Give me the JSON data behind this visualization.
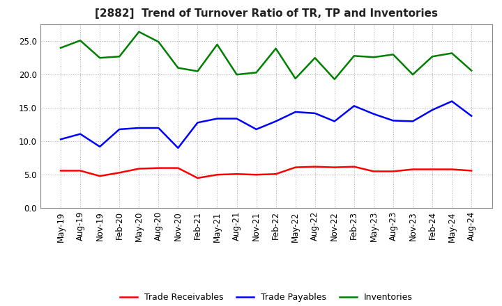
{
  "title": "[2882]  Trend of Turnover Ratio of TR, TP and Inventories",
  "x_labels": [
    "May-19",
    "Aug-19",
    "Nov-19",
    "Feb-20",
    "May-20",
    "Aug-20",
    "Nov-20",
    "Feb-21",
    "May-21",
    "Aug-21",
    "Nov-21",
    "Feb-22",
    "May-22",
    "Aug-22",
    "Nov-22",
    "Feb-23",
    "May-23",
    "Aug-23",
    "Nov-23",
    "Feb-24",
    "May-24",
    "Aug-24"
  ],
  "trade_receivables": [
    5.6,
    5.6,
    4.8,
    5.3,
    5.9,
    6.0,
    6.0,
    4.5,
    5.0,
    5.1,
    5.0,
    5.1,
    6.1,
    6.2,
    6.1,
    6.2,
    5.5,
    5.5,
    5.8,
    5.8,
    5.8,
    5.6
  ],
  "trade_payables": [
    10.3,
    11.1,
    9.2,
    11.8,
    12.0,
    12.0,
    9.0,
    12.8,
    13.4,
    13.4,
    11.8,
    13.0,
    14.4,
    14.2,
    13.0,
    15.3,
    14.1,
    13.1,
    13.0,
    14.7,
    16.0,
    13.8
  ],
  "inventories": [
    24.0,
    25.1,
    22.5,
    22.7,
    26.4,
    24.9,
    21.0,
    20.5,
    24.5,
    20.0,
    20.3,
    23.9,
    19.4,
    22.5,
    19.3,
    22.8,
    22.6,
    23.0,
    20.0,
    22.7,
    23.2,
    20.6
  ],
  "tr_color": "#ff0000",
  "tp_color": "#0000ff",
  "inv_color": "#008000",
  "ylim": [
    0,
    27.5
  ],
  "yticks": [
    0.0,
    5.0,
    10.0,
    15.0,
    20.0,
    25.0
  ],
  "grid_color": "#aaaaaa",
  "legend_labels": [
    "Trade Receivables",
    "Trade Payables",
    "Inventories"
  ],
  "background_color": "#ffffff",
  "title_fontsize": 11,
  "tick_fontsize": 8.5,
  "linewidth": 1.8
}
